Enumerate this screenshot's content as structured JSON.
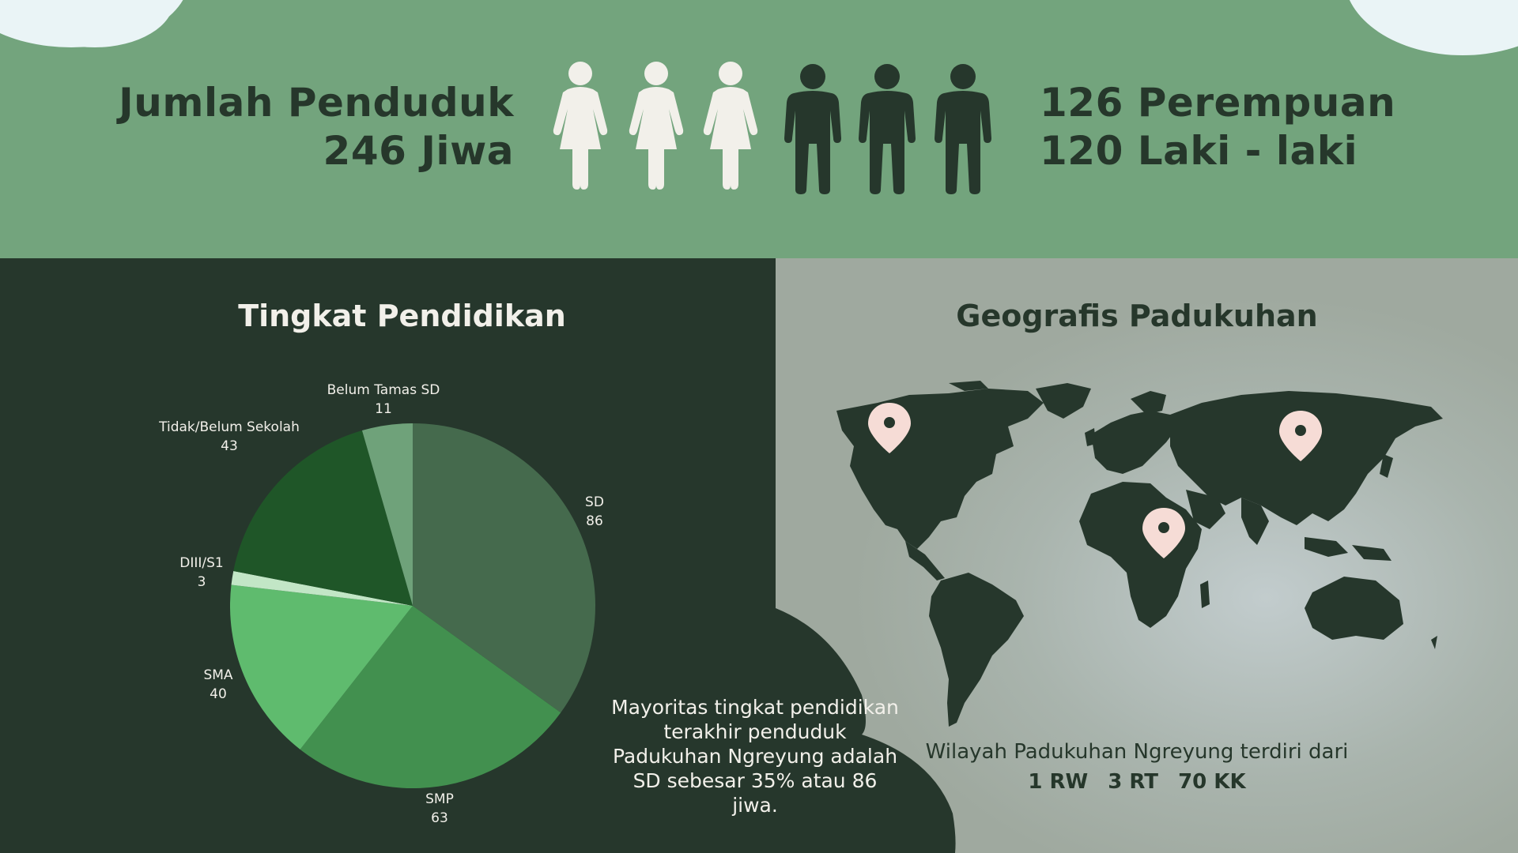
{
  "population": {
    "total_label": "Jumlah Penduduk",
    "total_value": "246 Jiwa",
    "female": "126 Perempuan",
    "male": "120 Laki - laki"
  },
  "education": {
    "title": "Tingkat Pendidikan",
    "note": "Mayoritas tingkat pendidikan terakhir penduduk Padukuhan Ngreyung adalah SD sebesar 35% atau 86 jiwa."
  },
  "geography": {
    "title": "Geografis Padukuhan",
    "description": "Wilayah Padukuhan Ngreyung terdiri dari",
    "rw": "1 RW",
    "rt": "3 RT",
    "kk": "70 KK"
  },
  "colors": {
    "top_bg": "#73a47d",
    "dark": "#26372c",
    "light_text": "#f2f0ea",
    "pin": "#f6dcd6"
  },
  "icons": [
    "female-person-icon",
    "male-person-icon",
    "location-pin-icon",
    "world-map"
  ],
  "chart_data": {
    "type": "pie",
    "title": "Tingkat Pendidikan",
    "categories": [
      "SD",
      "SMP",
      "SMA",
      "DIII/S1",
      "Tidak/Belum Sekolah",
      "Belum Tamas SD"
    ],
    "values": [
      86,
      63,
      40,
      3,
      43,
      11
    ],
    "colors": [
      "#456a4d",
      "#42904f",
      "#5fbb6e",
      "#c2e6c6",
      "#1f5628",
      "#6fa27a"
    ],
    "value_labels": [
      "86",
      "63",
      "40",
      "3",
      "43",
      "11"
    ]
  }
}
